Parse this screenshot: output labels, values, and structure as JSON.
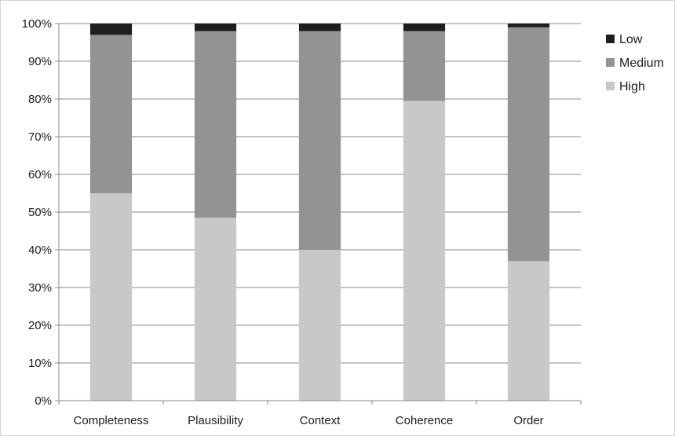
{
  "chart_data": {
    "type": "bar",
    "stacked": true,
    "categories": [
      "Completeness",
      "Plausibility",
      "Context",
      "Coherence",
      "Order"
    ],
    "series": [
      {
        "name": "High",
        "color": "#c8c8c8",
        "values": [
          55,
          48.5,
          40,
          79.5,
          37
        ]
      },
      {
        "name": "Medium",
        "color": "#939393",
        "values": [
          42,
          49.5,
          58,
          18.5,
          62
        ]
      },
      {
        "name": "Low",
        "color": "#1e1e1e",
        "values": [
          3,
          2,
          2,
          2,
          1
        ]
      }
    ],
    "y_ticks": [
      "0%",
      "10%",
      "20%",
      "30%",
      "40%",
      "50%",
      "60%",
      "70%",
      "80%",
      "90%",
      "100%"
    ],
    "ylim": [
      0,
      100
    ],
    "y_unit": "%",
    "grid": true,
    "legend": {
      "position": "top-right",
      "order": [
        "Low",
        "Medium",
        "High"
      ]
    },
    "title": "",
    "xlabel": "",
    "ylabel": ""
  }
}
